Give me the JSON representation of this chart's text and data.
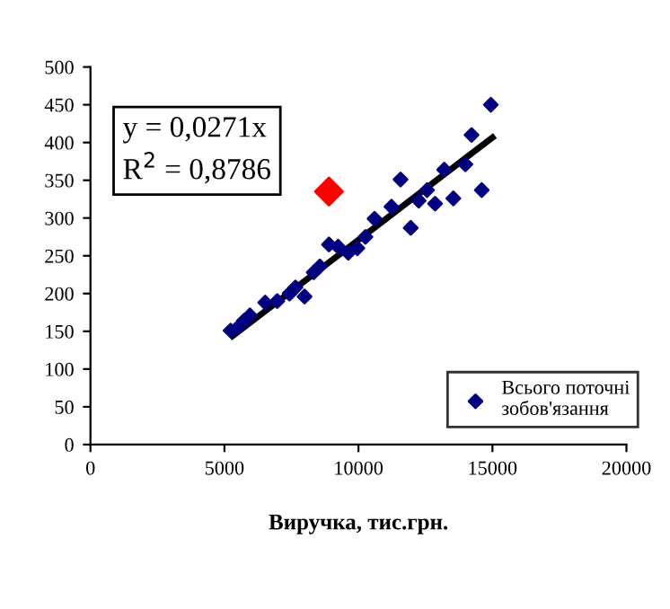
{
  "chart_data": {
    "type": "scatter",
    "xlabel": "Виручка, тис.грн.",
    "xlim": [
      0,
      20000
    ],
    "xticks": [
      0,
      5000,
      10000,
      15000,
      20000
    ],
    "ylim": [
      0,
      500
    ],
    "yticks": [
      0,
      50,
      100,
      150,
      200,
      250,
      300,
      350,
      400,
      450,
      500
    ],
    "grid": false,
    "legend": "bottom right",
    "marker": "diamond",
    "annotations": [
      "y = 0,0271x",
      "R$^{2}$ = 0,8786"
    ],
    "series": [
      {
        "name": "Всього поточні зобов'язання",
        "color": "#000080",
        "x": [
          5230,
          5500,
          5730,
          5950,
          6520,
          6970,
          7430,
          7650,
          7990,
          8330,
          8560,
          8900,
          9240,
          9620,
          9960,
          10260,
          10600,
          11230,
          11570,
          11950,
          12250,
          12560,
          12860,
          13200,
          13540,
          13990,
          14220,
          14600,
          14940
        ],
        "values": [
          151,
          155,
          164,
          171,
          188,
          190,
          200,
          208,
          196,
          228,
          236,
          265,
          262,
          254,
          260,
          275,
          299,
          315,
          351,
          287,
          323,
          337,
          319,
          364,
          326,
          371,
          410,
          337,
          450
        ]
      },
      {
        "type": "line",
        "color": "#000000",
        "x": [
          5300,
          15000
        ],
        "values": [
          143.6,
          406.5
        ],
        "marker": "none"
      },
      {
        "color": "#ff0000",
        "x": [
          8900
        ],
        "values": [
          335
        ]
      }
    ]
  }
}
